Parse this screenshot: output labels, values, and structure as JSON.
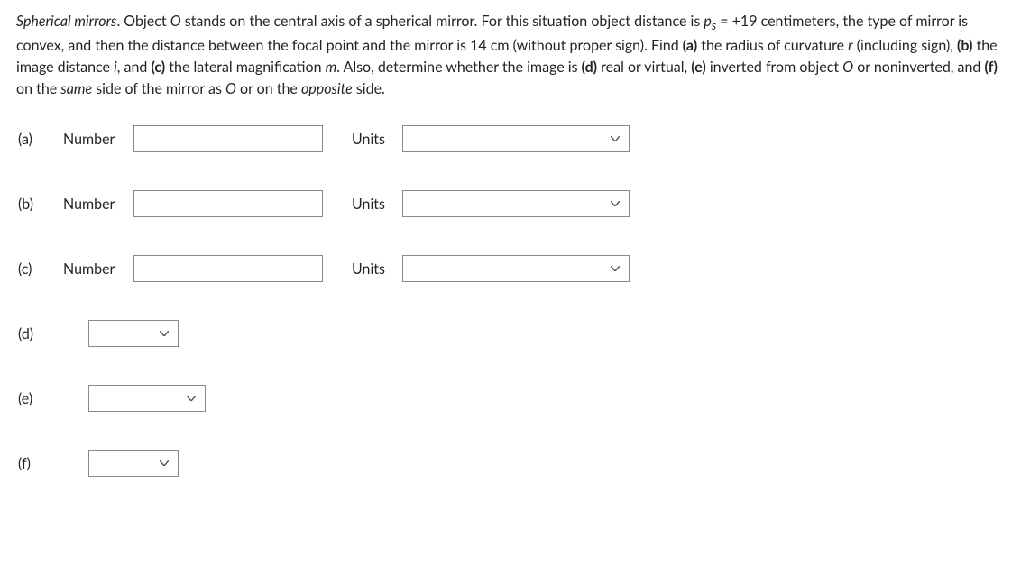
{
  "problem": {
    "html": "<i>Spherical mirrors</i>. Object <i>O</i> stands on the central axis of a spherical mirror. For this situation object distance is <i>p<sub>s</sub></i> = +19 centimeters, the type of mirror is convex, and then the distance between the focal point and the mirror is 14 cm (without proper sign). Find <b>(a)</b> the radius of curvature <i>r</i> (including sign), <b>(b)</b> the image distance <i>i</i>, and <b>(c)</b> the lateral magnification <i>m</i>. Also, determine whether the image is <b>(d)</b> real or virtual, <b>(e)</b> inverted from object <i>O</i> or noninverted, and <b>(f)</b> on the <i>same</i> side of the mirror as <i>O</i> or on the <i>opposite</i> side."
  },
  "labels": {
    "number": "Number",
    "units": "Units"
  },
  "parts": {
    "a": {
      "label": "(a)"
    },
    "b": {
      "label": "(b)"
    },
    "c": {
      "label": "(c)"
    },
    "d": {
      "label": "(d)"
    },
    "e": {
      "label": "(e)"
    },
    "f": {
      "label": "(f)"
    }
  }
}
